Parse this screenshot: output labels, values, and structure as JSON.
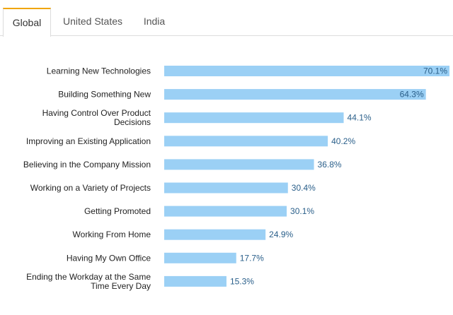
{
  "tabs": [
    {
      "label": "Global",
      "active": true
    },
    {
      "label": "United States",
      "active": false
    },
    {
      "label": "India",
      "active": false
    }
  ],
  "colors": {
    "bar": "#9bd0f5",
    "accent": "#f0a500",
    "value_text": "#2a5f8a"
  },
  "chart_data": {
    "type": "bar",
    "orientation": "horizontal",
    "title": "",
    "xlabel": "",
    "ylabel": "",
    "xlim": [
      0,
      70.1
    ],
    "value_suffix": "%",
    "categories": [
      [
        "Learning New Technologies"
      ],
      [
        "Building Something New"
      ],
      [
        "Having Control Over Product",
        "Decisions"
      ],
      [
        "Improving an Existing Application"
      ],
      [
        "Believing in the Company Mission"
      ],
      [
        "Working on a Variety of Projects"
      ],
      [
        "Getting Promoted"
      ],
      [
        "Working From Home"
      ],
      [
        "Having My Own Office"
      ],
      [
        "Ending the Workday at the Same",
        "Time Every Day"
      ]
    ],
    "values": [
      70.1,
      64.3,
      44.1,
      40.2,
      36.8,
      30.4,
      30.1,
      24.9,
      17.7,
      15.3
    ],
    "value_labels": [
      "70.1%",
      "64.3%",
      "44.1%",
      "40.2%",
      "36.8%",
      "30.4%",
      "30.1%",
      "24.9%",
      "17.7%",
      "15.3%"
    ]
  }
}
